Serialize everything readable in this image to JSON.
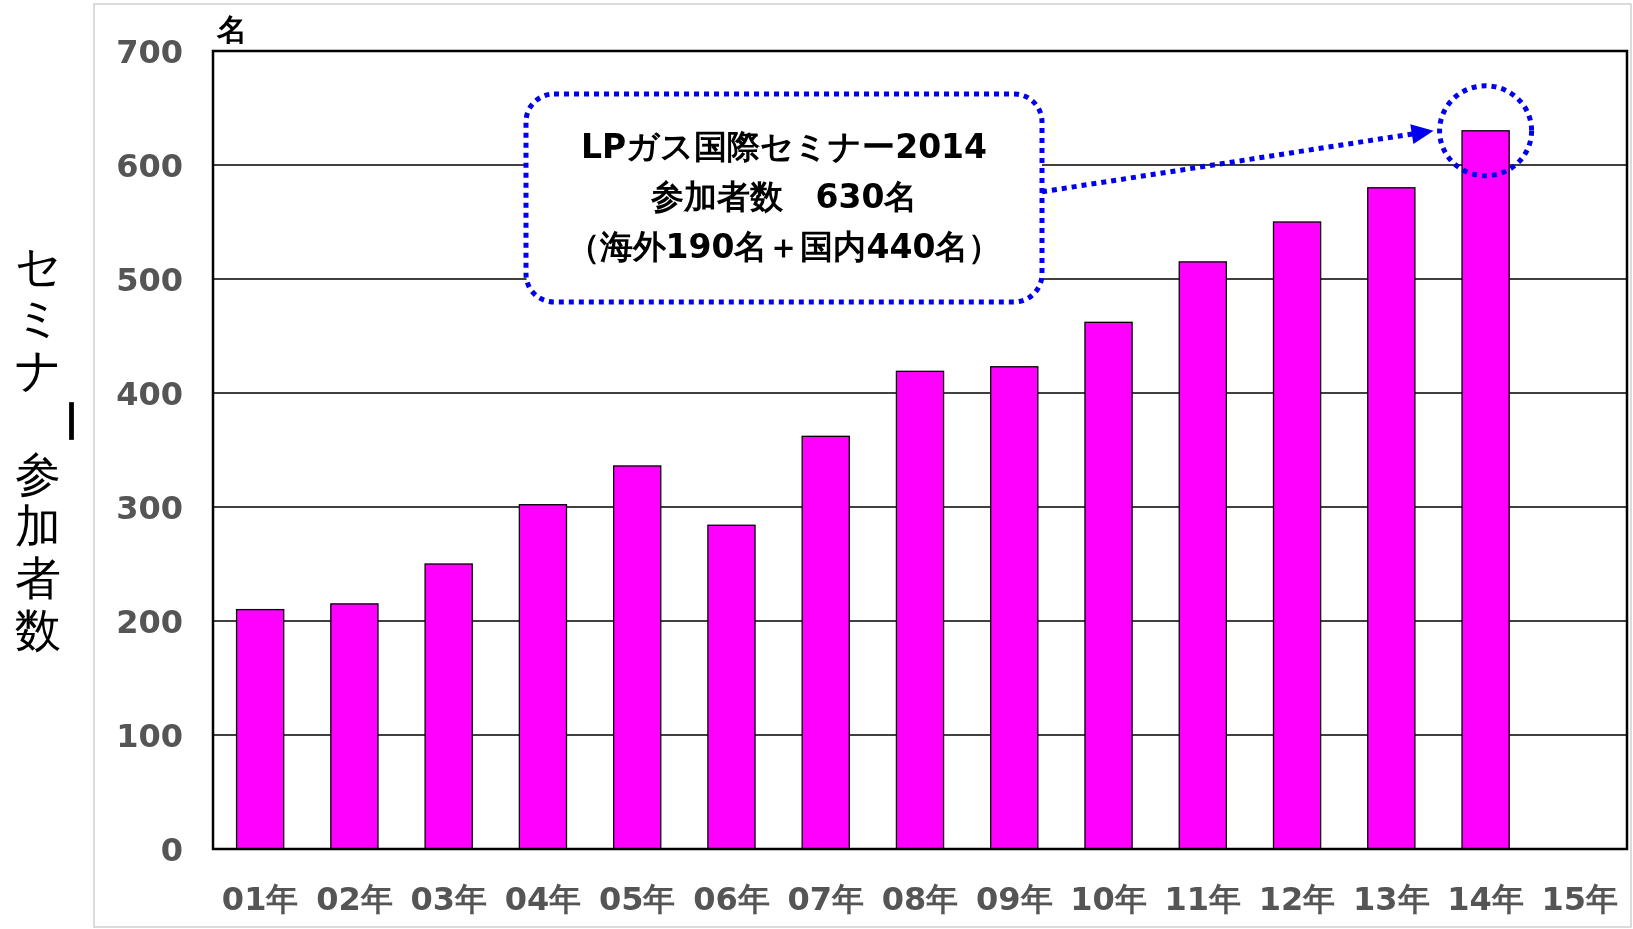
{
  "chart_data": {
    "type": "bar",
    "ylabel": "セミナー参加者数",
    "categories": [
      "01年",
      "02年",
      "03年",
      "04年",
      "05年",
      "06年",
      "07年",
      "08年",
      "09年",
      "10年",
      "11年",
      "12年",
      "13年",
      "14年",
      "15年"
    ],
    "values": [
      210,
      215,
      250,
      302,
      336,
      284,
      362,
      419,
      423,
      462,
      515,
      550,
      580,
      630,
      null
    ],
    "color": "#ff00ff",
    "ylim": [
      0,
      700
    ],
    "yticks": [
      0,
      100,
      200,
      300,
      400,
      500,
      600,
      700
    ],
    "grid": "y",
    "annotations": [
      "名",
      "LPガス国際セミナー2014",
      "参加者数　630名",
      "（海外190名＋国内440名）"
    ]
  }
}
